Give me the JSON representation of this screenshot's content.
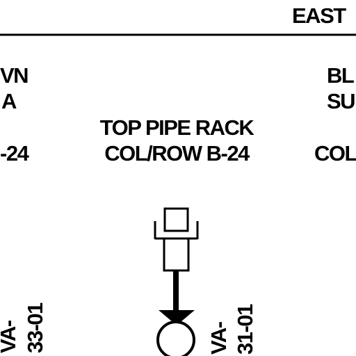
{
  "header": {
    "east_label": "EAST"
  },
  "left_partial": {
    "line1": "VN",
    "line2": "A",
    "line3": "-24"
  },
  "center_label": {
    "line1": "TOP PIPE RACK",
    "line2": "COL/ROW B-24"
  },
  "right_partial": {
    "line1": "BL",
    "line2": "SU",
    "line3": "COL"
  },
  "valve_tags": {
    "left": {
      "line1": "VA-",
      "line2": "33-01"
    },
    "center": {
      "line1": "VA-",
      "line2": "31-01"
    }
  },
  "colors": {
    "line": "#000000",
    "background": "#ffffff"
  }
}
